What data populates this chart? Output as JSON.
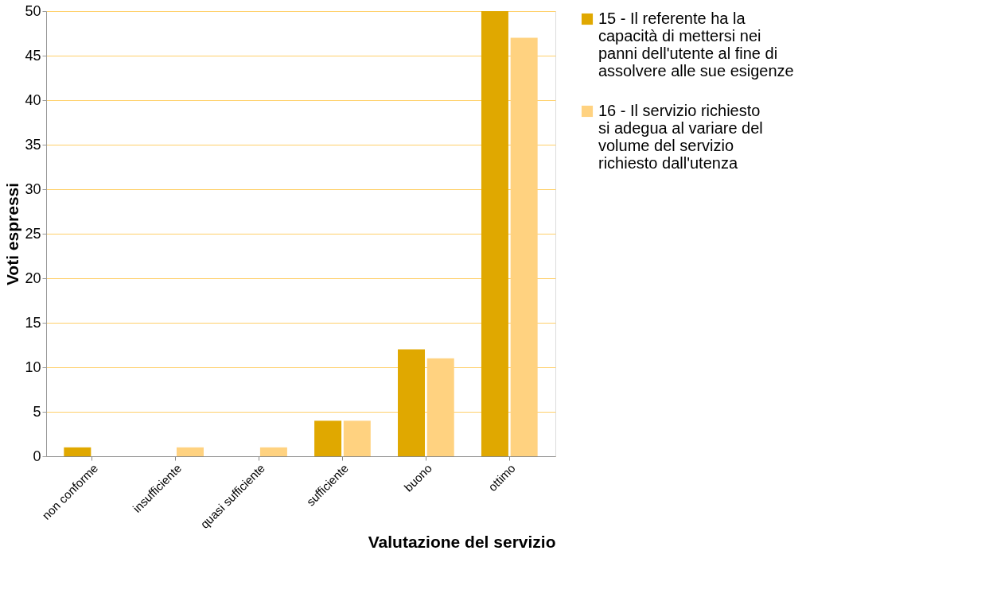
{
  "chart_data": {
    "type": "bar",
    "xlabel": "Valutazione del servizio",
    "ylabel": "Voti espressi",
    "categories": [
      "non conforme",
      "insufficiente",
      "quasi sufficiente",
      "sufficiente",
      "buono",
      "ottimo"
    ],
    "series": [
      {
        "name": "15 - Il referente ha la capacità di mettersi nei panni dell'utente al fine di assolvere alle sue esigenze",
        "color": "#e0a800",
        "values": [
          1,
          0,
          0,
          4,
          12,
          50
        ]
      },
      {
        "name": "16 - Il servizio richiesto si adegua al variare del volume del servizio richiesto dall'utenza",
        "color": "#ffd280",
        "values": [
          0,
          1,
          1,
          4,
          11,
          47
        ]
      }
    ],
    "ylim": [
      0,
      50
    ],
    "yticks": [
      0,
      5,
      10,
      15,
      20,
      25,
      30,
      35,
      40,
      45,
      50
    ],
    "grid": "y",
    "legend": "right"
  }
}
